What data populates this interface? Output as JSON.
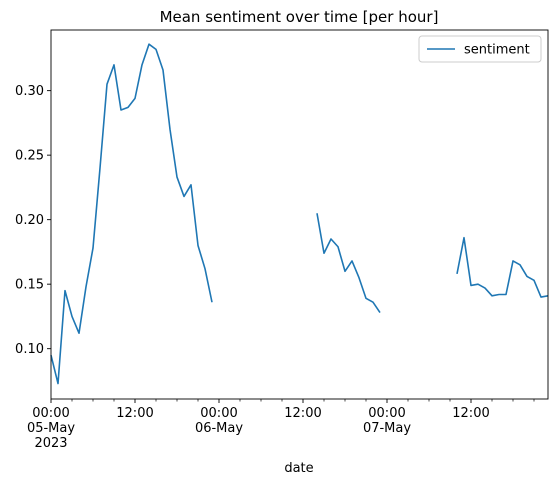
{
  "chart_data": {
    "type": "line",
    "title": "Mean sentiment over time [per hour]",
    "xlabel": "date",
    "ylabel": "",
    "ylim": [
      0.061,
      0.347
    ],
    "yticks": [
      0.1,
      0.15,
      0.2,
      0.25,
      0.3
    ],
    "ytick_labels": [
      "0.10",
      "0.15",
      "0.20",
      "0.25",
      "0.30"
    ],
    "xlim": [
      "2023-05-05 00:00",
      "2023-05-07 23:00"
    ],
    "xticks": [
      {
        "x": "2023-05-05 00:00",
        "lines": [
          "00:00",
          "05-May",
          "2023"
        ]
      },
      {
        "x": "2023-05-05 12:00",
        "lines": [
          "12:00"
        ]
      },
      {
        "x": "2023-05-06 00:00",
        "lines": [
          "00:00",
          "06-May"
        ]
      },
      {
        "x": "2023-05-06 12:00",
        "lines": [
          "12:00"
        ]
      },
      {
        "x": "2023-05-07 00:00",
        "lines": [
          "00:00",
          "07-May"
        ]
      },
      {
        "x": "2023-05-07 12:00",
        "lines": [
          "12:00"
        ]
      }
    ],
    "grid": false,
    "legend_position": "top-right",
    "line_color": "#1f77b4",
    "series": [
      {
        "name": "sentiment",
        "segments": [
          {
            "start": "2023-05-05 00:00",
            "values": [
              0.095,
              0.073,
              0.145,
              0.125,
              0.112,
              0.148,
              0.178,
              0.24,
              0.305,
              0.32,
              0.285,
              0.287,
              0.294,
              0.32,
              0.336,
              0.332,
              0.316,
              0.27,
              0.233,
              0.218,
              0.227,
              0.18,
              0.162,
              0.136
            ]
          },
          {
            "start": "2023-05-06 14:00",
            "values": [
              0.205,
              0.174,
              0.185,
              0.179,
              0.16,
              0.168,
              0.155,
              0.139,
              0.136,
              0.128
            ]
          },
          {
            "start": "2023-05-07 10:00",
            "values": [
              0.158,
              0.186,
              0.149,
              0.15,
              0.147,
              0.141,
              0.142,
              0.142,
              0.168,
              0.165,
              0.156,
              0.153,
              0.14,
              0.141
            ]
          }
        ]
      }
    ]
  }
}
